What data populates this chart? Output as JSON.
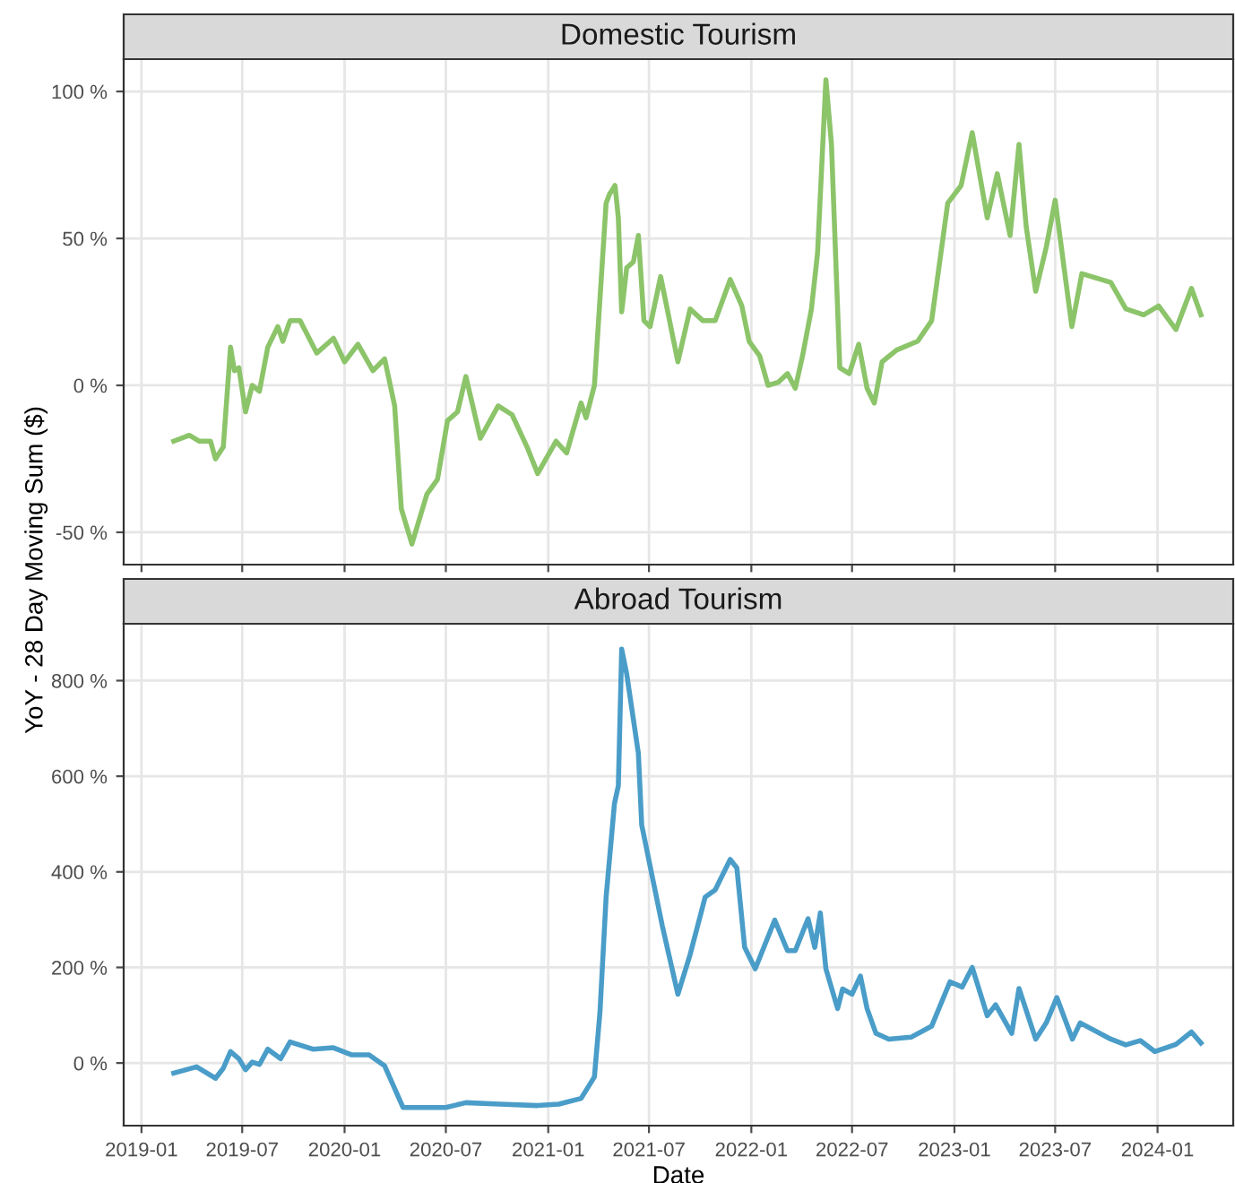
{
  "chart_data": [
    {
      "type": "line",
      "title": "Domestic Tourism",
      "ylabel": "YoY - 28 Day Moving Sum ($)",
      "x": [
        "2019-02-28",
        "2019-03-28",
        "2019-04-15",
        "2019-05-05",
        "2019-05-14",
        "2019-05-28",
        "2019-06-10",
        "2019-06-17",
        "2019-06-25",
        "2019-07-07",
        "2019-07-19",
        "2019-08-01",
        "2019-08-16",
        "2019-09-03",
        "2019-09-12",
        "2019-09-25",
        "2019-10-13",
        "2019-11-12",
        "2019-12-12",
        "2020-01-01",
        "2020-01-25",
        "2020-02-21",
        "2020-03-13",
        "2020-03-31",
        "2020-04-12",
        "2020-05-01",
        "2020-05-28",
        "2020-06-16",
        "2020-07-04",
        "2020-07-22",
        "2020-08-06",
        "2020-09-01",
        "2020-10-03",
        "2020-10-28",
        "2020-11-24",
        "2020-12-13",
        "2021-01-15",
        "2021-02-03",
        "2021-03-01",
        "2021-03-10",
        "2021-03-25",
        "2021-04-15",
        "2021-04-21",
        "2021-05-01",
        "2021-05-07",
        "2021-05-13",
        "2021-05-22",
        "2021-06-03",
        "2021-06-12",
        "2021-06-22",
        "2021-07-03",
        "2021-07-22",
        "2021-08-22",
        "2021-09-13",
        "2021-10-06",
        "2021-10-28",
        "2021-11-24",
        "2021-12-15",
        "2021-12-28",
        "2022-01-16",
        "2022-01-31",
        "2022-02-18",
        "2022-03-07",
        "2022-03-21",
        "2022-04-03",
        "2022-04-19",
        "2022-04-30",
        "2022-05-15",
        "2022-05-25",
        "2022-06-09",
        "2022-06-26",
        "2022-07-13",
        "2022-07-28",
        "2022-08-10",
        "2022-08-24",
        "2022-09-19",
        "2022-10-27",
        "2022-11-21",
        "2022-12-20",
        "2023-01-13",
        "2023-02-02",
        "2023-03-01",
        "2023-03-19",
        "2023-04-11",
        "2023-04-27",
        "2023-05-10",
        "2023-05-27",
        "2023-06-15",
        "2023-07-01",
        "2023-07-31",
        "2023-08-18",
        "2023-10-09",
        "2023-11-05",
        "2023-12-07",
        "2024-01-03",
        "2024-02-03",
        "2024-03-02",
        "2024-03-19"
      ],
      "series": [
        {
          "color": "#8cc46a",
          "values": [
            -19,
            -17,
            -19,
            -19,
            -25,
            -21,
            13,
            5,
            6,
            -9,
            0,
            -2,
            13,
            20,
            15,
            22,
            22,
            11,
            16,
            8,
            14,
            5,
            9,
            -7,
            -42,
            -54,
            -37,
            -32,
            -12,
            -9,
            3,
            -18,
            -7,
            -10,
            -21,
            -30,
            -19,
            -23,
            -6,
            -11,
            0,
            62,
            65,
            68,
            57,
            25,
            40,
            42,
            51,
            22,
            20,
            37,
            8,
            26,
            22,
            22,
            36,
            27,
            15,
            10,
            0,
            1,
            4,
            -1,
            10,
            26,
            45,
            104,
            82,
            6,
            4,
            14,
            -1,
            -6,
            8,
            12,
            15,
            22,
            62,
            68,
            86,
            57,
            72,
            51,
            82,
            54,
            32,
            47,
            63,
            20,
            38,
            35,
            26,
            24,
            27,
            19,
            33,
            24
          ]
        }
      ],
      "xlim": [
        "2018-11-30",
        "2024-05-16"
      ],
      "xticks": [
        {
          "value": "2019-01-01",
          "label": null
        },
        {
          "value": "2019-07-01",
          "label": null
        },
        {
          "value": "2020-01-01",
          "label": null
        },
        {
          "value": "2020-07-01",
          "label": null
        },
        {
          "value": "2021-01-01",
          "label": null
        },
        {
          "value": "2021-07-01",
          "label": null
        },
        {
          "value": "2022-01-01",
          "label": null
        },
        {
          "value": "2022-07-01",
          "label": null
        },
        {
          "value": "2023-01-01",
          "label": null
        },
        {
          "value": "2023-07-01",
          "label": null
        },
        {
          "value": "2024-01-01",
          "label": null
        }
      ],
      "ylim": [
        -61,
        111
      ],
      "yticks": [
        {
          "value": -50,
          "label": "-50 %"
        },
        {
          "value": 0,
          "label": "0 %"
        },
        {
          "value": 50,
          "label": "50 %"
        },
        {
          "value": 100,
          "label": "100 %"
        }
      ],
      "tick_labels": "y",
      "grid": true,
      "line_style": "solid",
      "marker": "none"
    },
    {
      "type": "line",
      "title": "Abroad Tourism",
      "xlabel": "Date",
      "x": [
        "2019-02-28",
        "2019-04-10",
        "2019-05-14",
        "2019-05-28",
        "2019-06-10",
        "2019-06-25",
        "2019-07-07",
        "2019-07-19",
        "2019-08-01",
        "2019-08-16",
        "2019-09-08",
        "2019-09-25",
        "2019-11-05",
        "2019-12-12",
        "2020-01-14",
        "2020-02-14",
        "2020-03-13",
        "2020-04-15",
        "2020-07-01",
        "2020-08-06",
        "2020-10-06",
        "2020-12-13",
        "2021-01-20",
        "2021-03-01",
        "2021-03-25",
        "2021-04-04",
        "2021-04-15",
        "2021-04-30",
        "2021-05-07",
        "2021-05-13",
        "2021-05-22",
        "2021-06-12",
        "2021-06-18",
        "2021-07-25",
        "2021-08-22",
        "2021-09-13",
        "2021-10-10",
        "2021-10-28",
        "2021-11-24",
        "2021-12-06",
        "2021-12-20",
        "2022-01-08",
        "2022-02-12",
        "2022-03-07",
        "2022-03-21",
        "2022-04-13",
        "2022-04-25",
        "2022-05-05",
        "2022-05-15",
        "2022-06-05",
        "2022-06-14",
        "2022-07-01",
        "2022-07-16",
        "2022-07-28",
        "2022-08-13",
        "2022-09-05",
        "2022-10-15",
        "2022-11-21",
        "2022-12-24",
        "2023-01-15",
        "2023-02-02",
        "2023-03-01",
        "2023-03-16",
        "2023-04-14",
        "2023-04-27",
        "2023-05-27",
        "2023-06-15",
        "2023-07-04",
        "2023-08-01",
        "2023-08-15",
        "2023-10-09",
        "2023-11-05",
        "2023-12-01",
        "2023-12-27",
        "2024-02-03",
        "2024-03-02",
        "2024-03-19"
      ],
      "series": [
        {
          "color": "#4a9dc8",
          "values": [
            -21,
            -8,
            -32,
            -11,
            24,
            9,
            -14,
            2,
            -3,
            29,
            9,
            44,
            29,
            32,
            17,
            17,
            -6,
            -93,
            -93,
            -83,
            -86,
            -89,
            -86,
            -74,
            -29,
            107,
            347,
            543,
            580,
            866,
            814,
            648,
            498,
            287,
            144,
            227,
            347,
            362,
            426,
            408,
            242,
            197,
            299,
            235,
            235,
            302,
            242,
            314,
            197,
            114,
            155,
            144,
            182,
            114,
            62,
            50,
            54,
            77,
            170,
            159,
            200,
            99,
            122,
            62,
            156,
            50,
            84,
            137,
            50,
            84,
            50,
            38,
            47,
            24,
            39,
            65,
            42
          ]
        }
      ],
      "xlim": [
        "2018-11-30",
        "2024-05-16"
      ],
      "xticks": [
        {
          "value": "2019-01-01",
          "label": "2019-01"
        },
        {
          "value": "2019-07-01",
          "label": "2019-07"
        },
        {
          "value": "2020-01-01",
          "label": "2020-01"
        },
        {
          "value": "2020-07-01",
          "label": "2020-07"
        },
        {
          "value": "2021-01-01",
          "label": "2021-01"
        },
        {
          "value": "2021-07-01",
          "label": "2021-07"
        },
        {
          "value": "2022-01-01",
          "label": "2022-01"
        },
        {
          "value": "2022-07-01",
          "label": "2022-07"
        },
        {
          "value": "2023-01-01",
          "label": "2023-01"
        },
        {
          "value": "2023-07-01",
          "label": "2023-07"
        },
        {
          "value": "2024-01-01",
          "label": "2024-01"
        }
      ],
      "ylim": [
        -131,
        919
      ],
      "yticks": [
        {
          "value": 0,
          "label": "0 %"
        },
        {
          "value": 200,
          "label": "200 %"
        },
        {
          "value": 400,
          "label": "400 %"
        },
        {
          "value": 600,
          "label": "600 %"
        },
        {
          "value": 800,
          "label": "800 %"
        }
      ],
      "grid": true,
      "line_style": "solid",
      "marker": "none"
    }
  ]
}
